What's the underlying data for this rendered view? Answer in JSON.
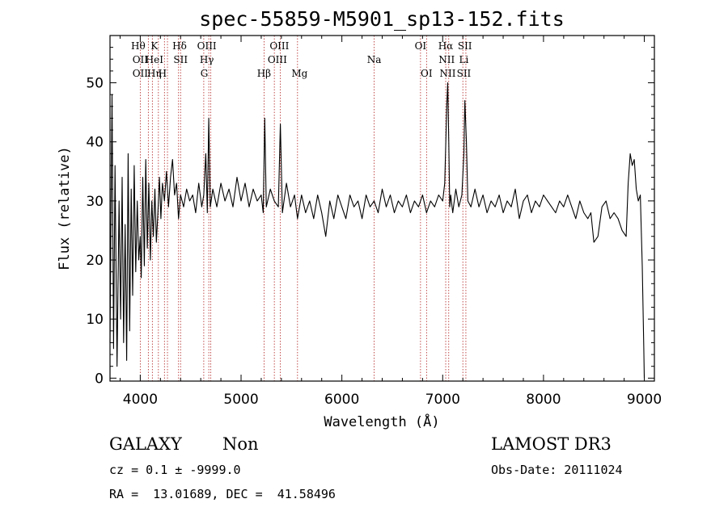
{
  "chart_data": {
    "type": "line",
    "title": "spec-55859-M5901_sp13-152.fits",
    "xlabel": "Wavelength (Å)",
    "ylabel": "Flux (relative)",
    "xlim": [
      3700,
      9100
    ],
    "ylim": [
      -0.5,
      58
    ],
    "xticks": [
      4000,
      5000,
      6000,
      7000,
      8000,
      9000
    ],
    "yticks": [
      0,
      10,
      20,
      30,
      40,
      50
    ],
    "grid": false,
    "series": [
      {
        "name": "flux",
        "points": [
          [
            3700,
            6
          ],
          [
            3720,
            48
          ],
          [
            3735,
            5
          ],
          [
            3750,
            36
          ],
          [
            3770,
            2
          ],
          [
            3790,
            30
          ],
          [
            3805,
            10
          ],
          [
            3820,
            34
          ],
          [
            3835,
            6
          ],
          [
            3850,
            26
          ],
          [
            3865,
            3
          ],
          [
            3880,
            38
          ],
          [
            3895,
            8
          ],
          [
            3910,
            32
          ],
          [
            3925,
            14
          ],
          [
            3940,
            36
          ],
          [
            3955,
            18
          ],
          [
            3970,
            30
          ],
          [
            3985,
            20
          ],
          [
            4000,
            24
          ],
          [
            4010,
            17
          ],
          [
            4025,
            34
          ],
          [
            4040,
            19
          ],
          [
            4055,
            37
          ],
          [
            4070,
            22
          ],
          [
            4085,
            33
          ],
          [
            4100,
            20
          ],
          [
            4115,
            30
          ],
          [
            4130,
            24
          ],
          [
            4145,
            32
          ],
          [
            4160,
            23
          ],
          [
            4175,
            28
          ],
          [
            4190,
            34
          ],
          [
            4205,
            27
          ],
          [
            4220,
            33
          ],
          [
            4240,
            30
          ],
          [
            4260,
            35
          ],
          [
            4280,
            29
          ],
          [
            4300,
            34
          ],
          [
            4320,
            37
          ],
          [
            4340,
            31
          ],
          [
            4360,
            33
          ],
          [
            4380,
            27
          ],
          [
            4400,
            31
          ],
          [
            4430,
            29
          ],
          [
            4460,
            32
          ],
          [
            4490,
            30
          ],
          [
            4520,
            31
          ],
          [
            4550,
            28
          ],
          [
            4580,
            33
          ],
          [
            4610,
            29
          ],
          [
            4630,
            31
          ],
          [
            4650,
            38
          ],
          [
            4665,
            28
          ],
          [
            4680,
            44
          ],
          [
            4695,
            29
          ],
          [
            4720,
            32
          ],
          [
            4760,
            29
          ],
          [
            4800,
            33
          ],
          [
            4840,
            30
          ],
          [
            4880,
            32
          ],
          [
            4920,
            29
          ],
          [
            4960,
            34
          ],
          [
            5000,
            30
          ],
          [
            5040,
            33
          ],
          [
            5080,
            29
          ],
          [
            5120,
            32
          ],
          [
            5160,
            30
          ],
          [
            5200,
            31
          ],
          [
            5220,
            28
          ],
          [
            5235,
            44
          ],
          [
            5250,
            29
          ],
          [
            5290,
            32
          ],
          [
            5330,
            30
          ],
          [
            5370,
            29
          ],
          [
            5390,
            43
          ],
          [
            5410,
            28
          ],
          [
            5450,
            33
          ],
          [
            5490,
            29
          ],
          [
            5530,
            31
          ],
          [
            5560,
            27
          ],
          [
            5600,
            31
          ],
          [
            5640,
            28
          ],
          [
            5680,
            30
          ],
          [
            5720,
            27
          ],
          [
            5760,
            31
          ],
          [
            5800,
            28
          ],
          [
            5840,
            24
          ],
          [
            5880,
            30
          ],
          [
            5920,
            27
          ],
          [
            5960,
            31
          ],
          [
            6000,
            29
          ],
          [
            6040,
            27
          ],
          [
            6080,
            31
          ],
          [
            6120,
            29
          ],
          [
            6160,
            30
          ],
          [
            6200,
            27
          ],
          [
            6240,
            31
          ],
          [
            6280,
            29
          ],
          [
            6320,
            30
          ],
          [
            6360,
            28
          ],
          [
            6400,
            32
          ],
          [
            6440,
            29
          ],
          [
            6480,
            31
          ],
          [
            6520,
            28
          ],
          [
            6560,
            30
          ],
          [
            6600,
            29
          ],
          [
            6640,
            31
          ],
          [
            6680,
            28
          ],
          [
            6720,
            30
          ],
          [
            6760,
            29
          ],
          [
            6800,
            31
          ],
          [
            6840,
            28
          ],
          [
            6880,
            30
          ],
          [
            6920,
            29
          ],
          [
            6960,
            31
          ],
          [
            7000,
            30
          ],
          [
            7020,
            33
          ],
          [
            7040,
            46
          ],
          [
            7050,
            50
          ],
          [
            7060,
            40
          ],
          [
            7070,
            29
          ],
          [
            7080,
            31
          ],
          [
            7100,
            28
          ],
          [
            7130,
            32
          ],
          [
            7160,
            29
          ],
          [
            7190,
            31
          ],
          [
            7210,
            38
          ],
          [
            7220,
            47
          ],
          [
            7235,
            40
          ],
          [
            7250,
            30
          ],
          [
            7280,
            29
          ],
          [
            7320,
            32
          ],
          [
            7360,
            29
          ],
          [
            7400,
            31
          ],
          [
            7440,
            28
          ],
          [
            7480,
            30
          ],
          [
            7520,
            29
          ],
          [
            7560,
            31
          ],
          [
            7600,
            28
          ],
          [
            7640,
            30
          ],
          [
            7680,
            29
          ],
          [
            7720,
            32
          ],
          [
            7760,
            27
          ],
          [
            7800,
            30
          ],
          [
            7840,
            31
          ],
          [
            7880,
            28
          ],
          [
            7920,
            30
          ],
          [
            7960,
            29
          ],
          [
            8000,
            31
          ],
          [
            8040,
            30
          ],
          [
            8080,
            29
          ],
          [
            8120,
            28
          ],
          [
            8160,
            30
          ],
          [
            8200,
            29
          ],
          [
            8240,
            31
          ],
          [
            8280,
            29
          ],
          [
            8320,
            27
          ],
          [
            8360,
            30
          ],
          [
            8400,
            28
          ],
          [
            8440,
            27
          ],
          [
            8470,
            28
          ],
          [
            8500,
            23
          ],
          [
            8540,
            24
          ],
          [
            8580,
            29
          ],
          [
            8620,
            30
          ],
          [
            8660,
            27
          ],
          [
            8700,
            28
          ],
          [
            8740,
            27
          ],
          [
            8780,
            25
          ],
          [
            8820,
            24
          ],
          [
            8840,
            33
          ],
          [
            8860,
            38
          ],
          [
            8880,
            36
          ],
          [
            8900,
            37
          ],
          [
            8920,
            32
          ],
          [
            8940,
            30
          ],
          [
            8960,
            31
          ],
          [
            8980,
            19
          ],
          [
            8995,
            5
          ],
          [
            9000,
            0
          ]
        ]
      }
    ],
    "lines": [
      {
        "label": "Hθ",
        "wave": 3980,
        "row": 1
      },
      {
        "label": "OII",
        "wave": 4000,
        "row": 2
      },
      {
        "label": "OII",
        "wave": 4000,
        "row": 3
      },
      {
        "label": "K",
        "wave": 4140,
        "row": 1
      },
      {
        "label": "HeI",
        "wave": 4140,
        "row": 2
      },
      {
        "label": "Hη",
        "wave": 4140,
        "row": 3
      },
      {
        "label": "H",
        "wave": 4220,
        "row": 3
      },
      {
        "label": "Hδ",
        "wave": 4390,
        "row": 1
      },
      {
        "label": "SII",
        "wave": 4400,
        "row": 2
      },
      {
        "label": "OIII",
        "wave": 4660,
        "row": 1
      },
      {
        "label": "Hγ",
        "wave": 4660,
        "row": 2
      },
      {
        "label": "G",
        "wave": 4635,
        "row": 3
      },
      {
        "label": "Hβ",
        "wave": 5228,
        "row": 3
      },
      {
        "label": "OIII",
        "wave": 5380,
        "row": 1
      },
      {
        "label": "OIII",
        "wave": 5360,
        "row": 2
      },
      {
        "label": "Mg",
        "wave": 5580,
        "row": 3
      },
      {
        "label": "Na",
        "wave": 6320,
        "row": 2
      },
      {
        "label": "OI",
        "wave": 6780,
        "row": 1
      },
      {
        "label": "OI",
        "wave": 6840,
        "row": 3
      },
      {
        "label": "Hα",
        "wave": 7030,
        "row": 1
      },
      {
        "label": "SII",
        "wave": 7220,
        "row": 1
      },
      {
        "label": "NII",
        "wave": 7040,
        "row": 2
      },
      {
        "label": "Li",
        "wave": 7210,
        "row": 2
      },
      {
        "label": "NII",
        "wave": 7050,
        "row": 3
      },
      {
        "label": "SII",
        "wave": 7210,
        "row": 3
      }
    ],
    "markers": [
      4000,
      4080,
      4120,
      4180,
      4240,
      4270,
      4380,
      4400,
      4630,
      4680,
      4700,
      5228,
      5330,
      5390,
      5560,
      6320,
      6780,
      6840,
      7030,
      7060,
      7200,
      7230
    ]
  },
  "info": {
    "class": "GALAXY",
    "subclass": "Non",
    "survey": "LAMOST DR3",
    "cz": "cz = 0.1 ± -9999.0",
    "obsdate": "Obs-Date: 20111024",
    "radec": "RA =  13.01689, DEC =  41.58496"
  }
}
